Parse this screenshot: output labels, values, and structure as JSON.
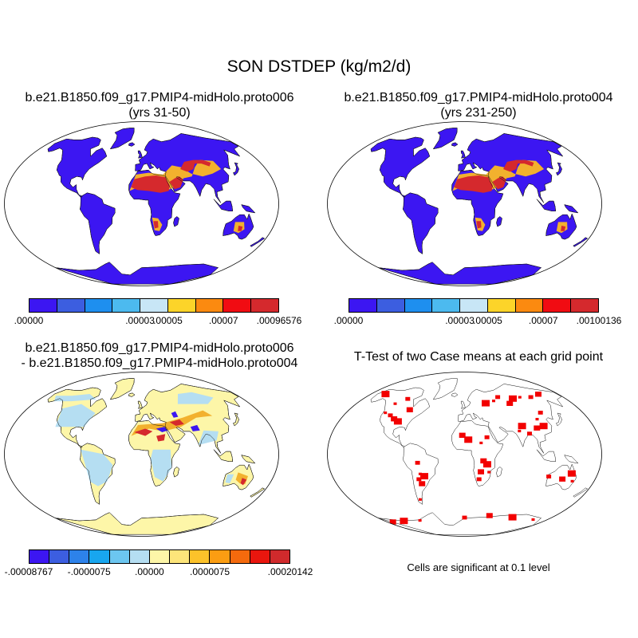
{
  "figure": {
    "title": "SON DSTDEP (kg/m2/d)"
  },
  "panels": {
    "case1": {
      "title_line1": "b.e21.B1850.f09_g17.PMIP4-midHolo.proto006",
      "title_line2": "(yrs 31-50)",
      "colorbar": {
        "colors": [
          "#3c16f2",
          "#3c5ee0",
          "#1e8fef",
          "#4cbaef",
          "#c8e6f6",
          "#fcd429",
          "#fb8a10",
          "#f10c12",
          "#d5292d"
        ],
        "labels": [
          ".00000",
          ".00003",
          ".00005",
          ".00007",
          ".00096576"
        ]
      }
    },
    "case2": {
      "title_line1": "b.e21.B1850.f09_g17.PMIP4-midHolo.proto004",
      "title_line2": "(yrs 231-250)",
      "colorbar": {
        "colors": [
          "#3c16f2",
          "#3c5ee0",
          "#1e8fef",
          "#4cbaef",
          "#c8e6f6",
          "#fcd429",
          "#fb8a10",
          "#f10c12",
          "#d5292d"
        ],
        "labels": [
          ".00000",
          ".00003",
          ".00005",
          ".00007",
          ".00100136"
        ]
      }
    },
    "diff": {
      "title_line1": "b.e21.B1850.f09_g17.PMIP4-midHolo.proto006",
      "title_line2": "- b.e21.B1850.f09_g17.PMIP4-midHolo.proto004",
      "colorbar": {
        "colors": [
          "#3c16f2",
          "#3c5ee0",
          "#2d82ea",
          "#18a6ef",
          "#6cc6f0",
          "#b5def2",
          "#fdf6a8",
          "#fde57a",
          "#fcc22a",
          "#fb9d12",
          "#f46a0d",
          "#e9160e",
          "#d02a2c"
        ],
        "labels": [
          "-.00008767",
          "-.0000075",
          ".00000",
          ".0000075",
          ".00020142"
        ]
      }
    },
    "ttest": {
      "title_line1": "T-Test of two Case means at each grid point",
      "note": "Cells are significant at 0.1 level"
    }
  },
  "colors": {
    "land_low": "#3c16f2",
    "dust_medium": "#f2b12e",
    "dust_high": "#d5292d",
    "diff_base": "#fdf6a8",
    "diff_neg": "#b5def2",
    "significant": "#f20000"
  }
}
